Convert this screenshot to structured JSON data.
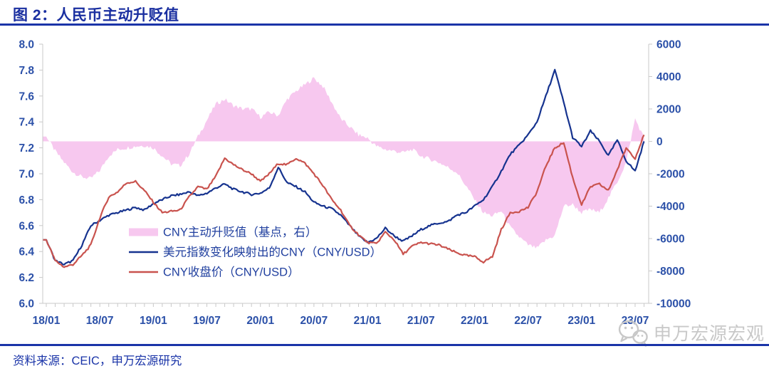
{
  "header": {
    "title": "图 2：人民币主动升贬值"
  },
  "watermark": {
    "text": "申万宏源宏观"
  },
  "footer": {
    "source": "资料来源：CEIC，申万宏源研究"
  },
  "colors": {
    "title_blue": "#1a2fa0",
    "rule_blue": "#1a34a8",
    "axis_text": "#2b50a8",
    "legend_text": "#21409f",
    "axis_line": "#c9c9c9",
    "area_pink": "#f7c8ef",
    "line_blue": "#16338f",
    "line_red": "#c9534e",
    "watermark_gray": "#c8c8c8"
  },
  "chart_data": {
    "type": "combo",
    "title": "人民币主动升贬值",
    "grid": false,
    "legend_position": "inside-bottom-left",
    "x_tick_labels": [
      "18/01",
      "18/07",
      "19/01",
      "19/07",
      "20/01",
      "20/07",
      "21/01",
      "21/07",
      "22/01",
      "22/07",
      "23/01",
      "23/07"
    ],
    "months": [
      "2018-01",
      "2018-02",
      "2018-03",
      "2018-04",
      "2018-05",
      "2018-06",
      "2018-07",
      "2018-08",
      "2018-09",
      "2018-10",
      "2018-11",
      "2018-12",
      "2019-01",
      "2019-02",
      "2019-03",
      "2019-04",
      "2019-05",
      "2019-06",
      "2019-07",
      "2019-08",
      "2019-09",
      "2019-10",
      "2019-11",
      "2019-12",
      "2020-01",
      "2020-02",
      "2020-03",
      "2020-04",
      "2020-05",
      "2020-06",
      "2020-07",
      "2020-08",
      "2020-09",
      "2020-10",
      "2020-11",
      "2020-12",
      "2021-01",
      "2021-02",
      "2021-03",
      "2021-04",
      "2021-05",
      "2021-06",
      "2021-07",
      "2021-08",
      "2021-09",
      "2021-10",
      "2021-11",
      "2021-12",
      "2022-01",
      "2022-02",
      "2022-03",
      "2022-04",
      "2022-05",
      "2022-06",
      "2022-07",
      "2022-08",
      "2022-09",
      "2022-10",
      "2022-11",
      "2022-12",
      "2023-01",
      "2023-02",
      "2023-03",
      "2023-04",
      "2023-05",
      "2023-06",
      "2023-07",
      "2023-08"
    ],
    "left_axis": {
      "min": 6.0,
      "max": 8.0,
      "ticks": [
        "8.0",
        "7.8",
        "7.6",
        "7.4",
        "7.2",
        "7.0",
        "6.8",
        "6.6",
        "6.4",
        "6.2",
        "6.0"
      ]
    },
    "right_axis": {
      "min": -10000,
      "max": 6000,
      "ticks": [
        "6000",
        "4000",
        "2000",
        "0",
        "-2000",
        "-4000",
        "-6000",
        "-8000",
        "-10000"
      ]
    },
    "series": [
      {
        "name": "CNY主动升贬值（基点，右）",
        "type": "area",
        "axis": "right",
        "color": "#f7c8ef",
        "values": [
          300,
          -600,
          -1300,
          -1900,
          -2200,
          -2300,
          -1800,
          -900,
          -500,
          -400,
          -300,
          -250,
          -400,
          -900,
          -1400,
          -1500,
          -800,
          300,
          1300,
          2300,
          2600,
          2200,
          2000,
          2000,
          1500,
          1800,
          1600,
          2600,
          3100,
          3500,
          3900,
          3400,
          2400,
          1400,
          900,
          400,
          200,
          -300,
          -500,
          -600,
          -700,
          -500,
          -900,
          -1100,
          -1300,
          -1600,
          -1900,
          -2700,
          -3600,
          -4400,
          -4600,
          -4300,
          -5300,
          -5900,
          -6400,
          -6600,
          -6100,
          -5800,
          -4000,
          -3900,
          -4400,
          -4200,
          -4400,
          -3500,
          -2500,
          -1300,
          1400,
          200
        ]
      },
      {
        "name": "美元指数变化映射出的CNY（CNY/USD）",
        "type": "line",
        "axis": "left",
        "color": "#16338f",
        "values": [
          6.49,
          6.33,
          6.3,
          6.33,
          6.45,
          6.6,
          6.64,
          6.68,
          6.7,
          6.72,
          6.74,
          6.72,
          6.77,
          6.8,
          6.83,
          6.84,
          6.86,
          6.83,
          6.85,
          6.89,
          6.92,
          6.88,
          6.86,
          6.84,
          6.85,
          6.89,
          7.05,
          6.93,
          6.9,
          6.86,
          6.78,
          6.75,
          6.73,
          6.68,
          6.6,
          6.52,
          6.47,
          6.5,
          6.58,
          6.52,
          6.48,
          6.52,
          6.57,
          6.6,
          6.62,
          6.63,
          6.68,
          6.7,
          6.75,
          6.8,
          6.9,
          7.02,
          7.15,
          7.22,
          7.3,
          7.4,
          7.6,
          7.8,
          7.55,
          7.28,
          7.21,
          7.33,
          7.25,
          7.14,
          7.26,
          7.1,
          7.02,
          7.25
        ]
      },
      {
        "name": "CNY收盘价（CNY/USD）",
        "type": "line",
        "axis": "left",
        "color": "#c9534e",
        "values": [
          6.49,
          6.33,
          6.28,
          6.3,
          6.37,
          6.45,
          6.66,
          6.82,
          6.86,
          6.93,
          6.94,
          6.87,
          6.78,
          6.7,
          6.71,
          6.72,
          6.82,
          6.9,
          6.88,
          6.98,
          7.12,
          7.07,
          7.03,
          7.0,
          6.94,
          7.0,
          7.08,
          7.07,
          7.12,
          7.08,
          7.0,
          6.91,
          6.8,
          6.72,
          6.6,
          6.53,
          6.47,
          6.46,
          6.55,
          6.49,
          6.38,
          6.44,
          6.47,
          6.46,
          6.45,
          6.42,
          6.39,
          6.37,
          6.36,
          6.32,
          6.36,
          6.57,
          6.7,
          6.71,
          6.74,
          6.86,
          7.06,
          7.2,
          7.24,
          6.97,
          6.76,
          6.9,
          6.92,
          6.87,
          7.03,
          7.2,
          7.12,
          7.3
        ]
      }
    ]
  }
}
